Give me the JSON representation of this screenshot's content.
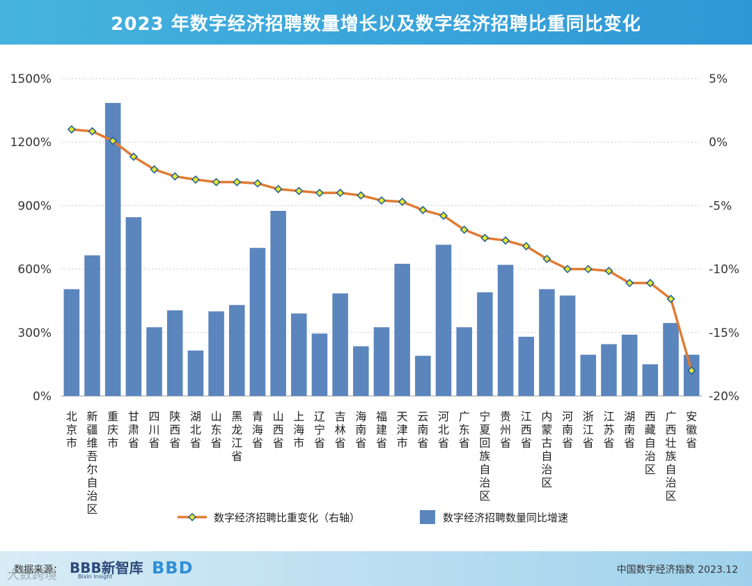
{
  "header": {
    "title": "2023 年数字经济招聘数量增长以及数字经济招聘比重同比变化"
  },
  "chart_data": {
    "type": "bar+line",
    "categories": [
      "北京市",
      "新疆维吾尔自治区",
      "重庆市",
      "甘肃省",
      "四川省",
      "陕西省",
      "湖北省",
      "山东省",
      "黑龙江省",
      "青海省",
      "山西省",
      "上海市",
      "辽宁省",
      "吉林省",
      "海南省",
      "福建省",
      "天津市",
      "云南省",
      "河北省",
      "广东省",
      "宁夏回族自治区",
      "贵州省",
      "江西省",
      "内蒙古自治区",
      "河南省",
      "浙江省",
      "江苏省",
      "湖南省",
      "西藏自治区",
      "广西壮族自治区",
      "安徽省"
    ],
    "series": [
      {
        "name": "数字经济招聘数量同比增速",
        "axis": "left",
        "type": "bar",
        "color": "#5b85bd",
        "values": [
          505,
          665,
          1385,
          845,
          325,
          405,
          215,
          400,
          430,
          700,
          875,
          390,
          295,
          485,
          235,
          325,
          625,
          190,
          715,
          325,
          490,
          620,
          280,
          505,
          475,
          195,
          245,
          290,
          150,
          345,
          195
        ]
      },
      {
        "name": "数字经济招聘比重变化（右轴）",
        "axis": "right",
        "type": "line",
        "color": "#e07b33",
        "marker_fill": "#e3e82e",
        "marker_stroke": "#1f5b99",
        "values": [
          1.0,
          0.85,
          0.1,
          -1.15,
          -2.15,
          -2.7,
          -2.95,
          -3.15,
          -3.15,
          -3.25,
          -3.7,
          -3.85,
          -4.0,
          -4.0,
          -4.2,
          -4.6,
          -4.7,
          -5.35,
          -5.8,
          -6.9,
          -7.55,
          -7.75,
          -8.2,
          -9.2,
          -10.0,
          -10.0,
          -10.15,
          -11.1,
          -11.1,
          -12.35,
          -18.0
        ]
      }
    ],
    "yaxis_left": {
      "min": 0,
      "max": 1500,
      "ticks": [
        0,
        300,
        600,
        900,
        1200,
        1500
      ],
      "tick_labels": [
        "0%",
        "300%",
        "600%",
        "900%",
        "1200%",
        "1500%"
      ]
    },
    "yaxis_right": {
      "min": -20,
      "max": 5,
      "ticks": [
        -20,
        -15,
        -10,
        -5,
        0,
        5
      ],
      "tick_labels": [
        "-20%",
        "-15%",
        "-10%",
        "-5%",
        "0%",
        "5%"
      ]
    },
    "grid": true,
    "legend": [
      {
        "label": "数字经济招聘比重变化（右轴）",
        "kind": "line"
      },
      {
        "label": "数字经济招聘数量同比增速",
        "kind": "bar"
      }
    ],
    "legend_position": "bottom"
  },
  "footer": {
    "source_label": "数据来源：",
    "logo1": "BBB新智库",
    "logo1_sub": "Bixin Insight",
    "logo2": "BBD",
    "index_label": "中国数字经济指数 2023.12"
  },
  "watermark": "大数跨境"
}
